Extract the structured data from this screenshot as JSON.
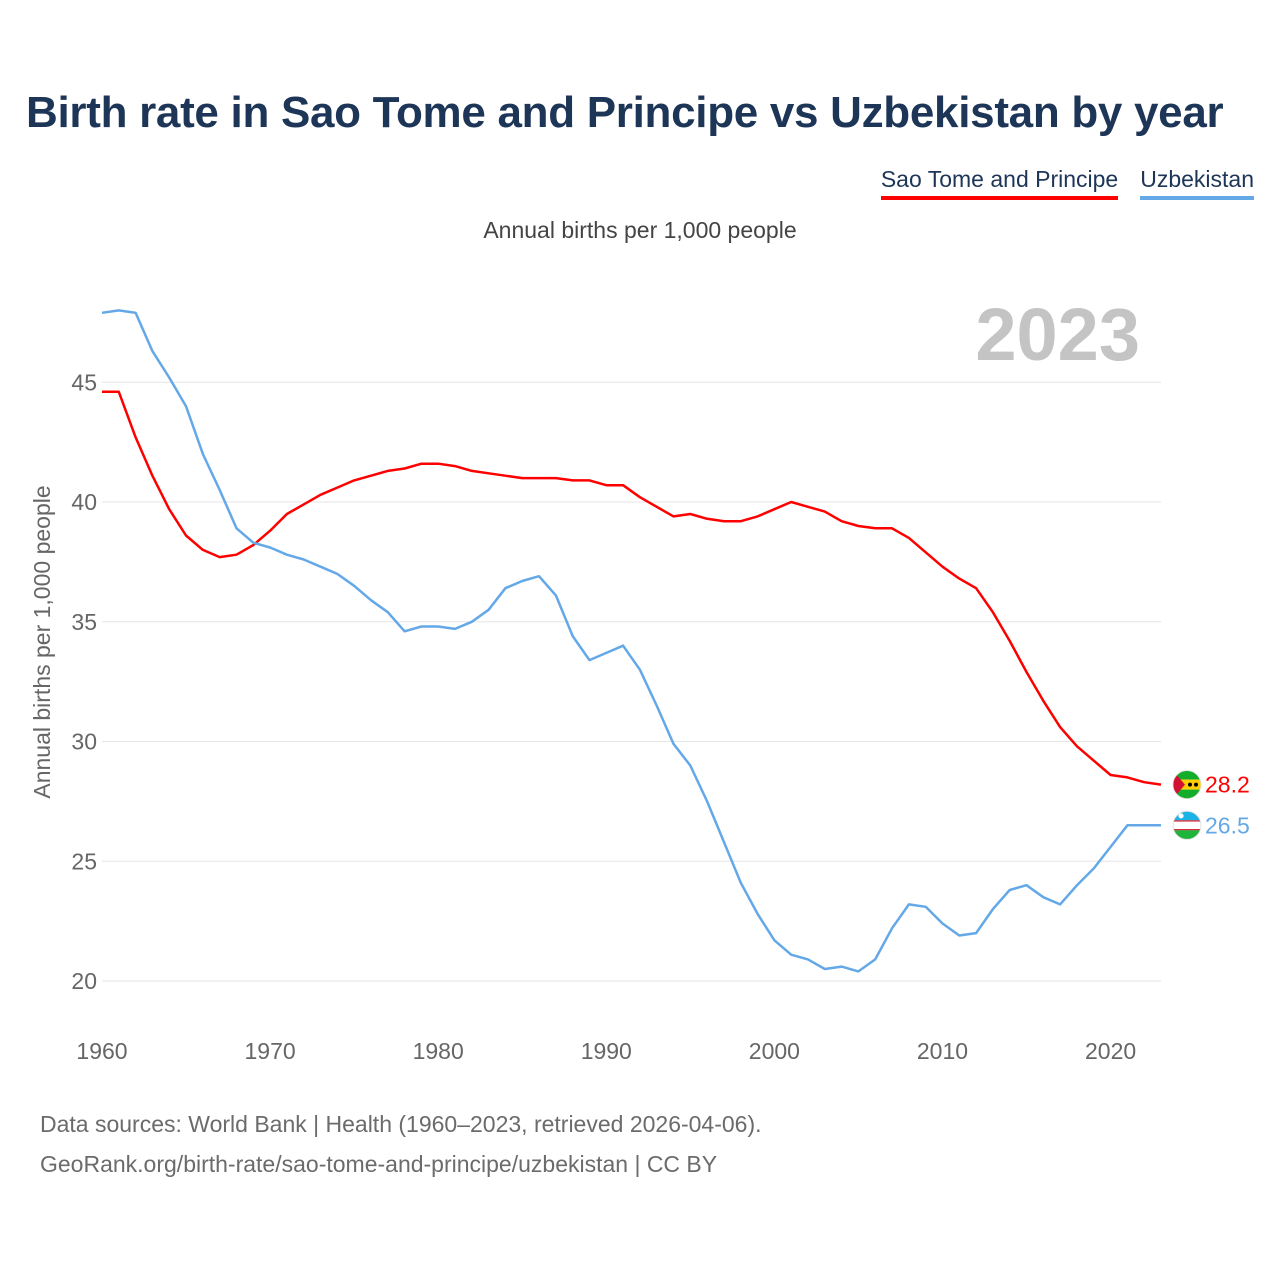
{
  "title": "Birth rate in Sao Tome and Principe vs Uzbekistan by year",
  "legend": [
    {
      "label": "Sao Tome and Principe",
      "color": "#ff0000"
    },
    {
      "label": "Uzbekistan",
      "color": "#64a8e8"
    }
  ],
  "subtitle": "Annual births per 1,000 people",
  "year_label": "2023",
  "footer": {
    "line1": "Data sources: World Bank | Health (1960–2023, retrieved 2026-04-06).",
    "line2": "GeoRank.org/birth-rate/sao-tome-and-principe/uzbekistan | CC BY"
  },
  "chart_data": {
    "type": "line",
    "title": "Birth rate in Sao Tome and Principe vs Uzbekistan by year",
    "xlabel": "",
    "ylabel": "Annual births per 1,000 people",
    "xlim": [
      1960,
      2023
    ],
    "ylim": [
      20,
      48
    ],
    "x_ticks": [
      1960,
      1970,
      1980,
      1990,
      2000,
      2010,
      2020
    ],
    "y_ticks": [
      20,
      25,
      30,
      35,
      40,
      45
    ],
    "x": [
      1960,
      1961,
      1962,
      1963,
      1964,
      1965,
      1966,
      1967,
      1968,
      1969,
      1970,
      1971,
      1972,
      1973,
      1974,
      1975,
      1976,
      1977,
      1978,
      1979,
      1980,
      1981,
      1982,
      1983,
      1984,
      1985,
      1986,
      1987,
      1988,
      1989,
      1990,
      1991,
      1992,
      1993,
      1994,
      1995,
      1996,
      1997,
      1998,
      1999,
      2000,
      2001,
      2002,
      2003,
      2004,
      2005,
      2006,
      2007,
      2008,
      2009,
      2010,
      2011,
      2012,
      2013,
      2014,
      2015,
      2016,
      2017,
      2018,
      2019,
      2020,
      2021,
      2022,
      2023
    ],
    "series": [
      {
        "name": "Sao Tome and Principe",
        "color": "#ff0000",
        "end_label": "28.2",
        "values": [
          44.6,
          44.6,
          42.7,
          41.1,
          39.7,
          38.6,
          38.0,
          37.7,
          37.8,
          38.2,
          38.8,
          39.5,
          39.9,
          40.3,
          40.6,
          40.9,
          41.1,
          41.3,
          41.4,
          41.6,
          41.6,
          41.5,
          41.3,
          41.2,
          41.1,
          41.0,
          41.0,
          41.0,
          40.9,
          40.9,
          40.7,
          40.7,
          40.2,
          39.8,
          39.4,
          39.5,
          39.3,
          39.2,
          39.2,
          39.4,
          39.7,
          40.0,
          39.8,
          39.6,
          39.2,
          39.0,
          38.9,
          38.9,
          38.5,
          37.9,
          37.3,
          36.8,
          36.4,
          35.4,
          34.2,
          32.9,
          31.7,
          30.6,
          29.8,
          29.2,
          28.6,
          28.5,
          28.3,
          28.2
        ]
      },
      {
        "name": "Uzbekistan",
        "color": "#64a8e8",
        "end_label": "26.5",
        "values": [
          47.9,
          48.0,
          47.9,
          46.3,
          45.2,
          44.0,
          42.0,
          40.5,
          38.9,
          38.3,
          38.1,
          37.8,
          37.6,
          37.3,
          37.0,
          36.5,
          35.9,
          35.4,
          34.6,
          34.8,
          34.8,
          34.7,
          35.0,
          35.5,
          36.4,
          36.7,
          36.9,
          36.1,
          34.4,
          33.4,
          33.7,
          34.0,
          33.0,
          31.5,
          29.9,
          29.0,
          27.5,
          25.8,
          24.1,
          22.8,
          21.7,
          21.1,
          20.9,
          20.5,
          20.6,
          20.4,
          20.9,
          22.2,
          23.2,
          23.1,
          22.4,
          21.9,
          22.0,
          23.0,
          23.8,
          24.0,
          23.5,
          23.2,
          24.0,
          24.7,
          25.6,
          26.5,
          26.5,
          26.5
        ]
      }
    ]
  }
}
